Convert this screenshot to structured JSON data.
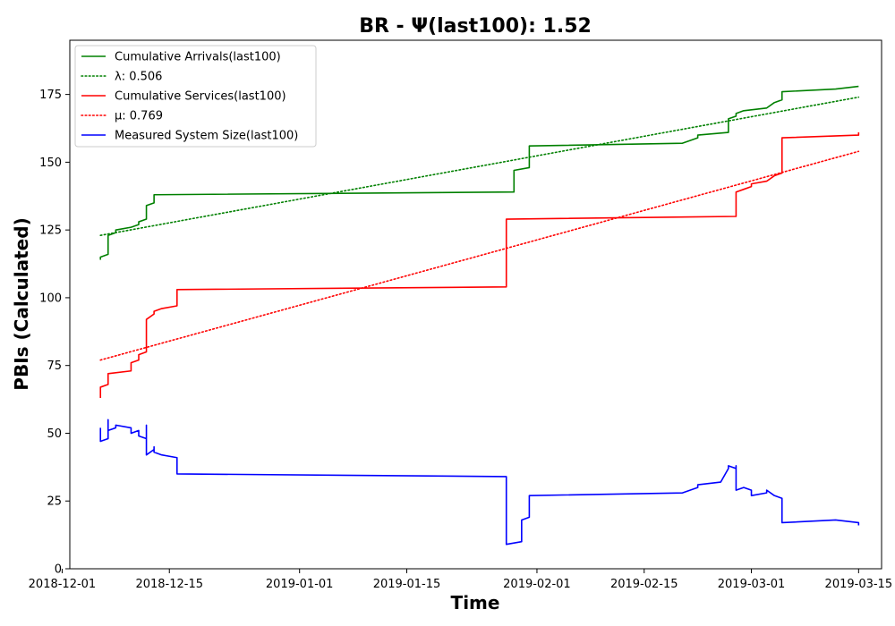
{
  "chart_data": {
    "type": "line",
    "title": "BR -  Ψ(last100): 1.52",
    "xlabel": "Time",
    "ylabel": "PBIs (Calculated)",
    "xlim": [
      "2018-12-02",
      "2019-03-18"
    ],
    "ylim": [
      0,
      195
    ],
    "x_ticks": [
      "2018-12-01",
      "2018-12-15",
      "2019-01-01",
      "2019-01-15",
      "2019-02-01",
      "2019-02-15",
      "2019-03-01",
      "2019-03-15"
    ],
    "y_ticks": [
      0,
      25,
      50,
      75,
      100,
      125,
      150,
      175
    ],
    "grid": false,
    "legend_position": "top-left",
    "series": [
      {
        "name": "Cumulative Arrivals(last100)",
        "color": "#008000",
        "style": "solid",
        "points": [
          [
            "2018-12-06",
            114
          ],
          [
            "2018-12-06",
            115
          ],
          [
            "2018-12-07",
            116
          ],
          [
            "2018-12-07",
            123
          ],
          [
            "2018-12-08",
            124
          ],
          [
            "2018-12-08",
            125
          ],
          [
            "2018-12-10",
            126
          ],
          [
            "2018-12-11",
            127
          ],
          [
            "2018-12-11",
            128
          ],
          [
            "2018-12-12",
            129
          ],
          [
            "2018-12-12",
            134
          ],
          [
            "2018-12-13",
            135
          ],
          [
            "2018-12-13",
            138
          ],
          [
            "2019-01-29",
            139
          ],
          [
            "2019-01-29",
            147
          ],
          [
            "2019-01-31",
            148
          ],
          [
            "2019-01-31",
            156
          ],
          [
            "2019-02-20",
            157
          ],
          [
            "2019-02-22",
            159
          ],
          [
            "2019-02-22",
            160
          ],
          [
            "2019-02-26",
            161
          ],
          [
            "2019-02-26",
            166
          ],
          [
            "2019-02-27",
            167
          ],
          [
            "2019-02-27",
            168
          ],
          [
            "2019-02-28",
            169
          ],
          [
            "2019-03-03",
            170
          ],
          [
            "2019-03-04",
            172
          ],
          [
            "2019-03-05",
            173
          ],
          [
            "2019-03-05",
            176
          ],
          [
            "2019-03-12",
            177
          ],
          [
            "2019-03-15",
            178
          ]
        ]
      },
      {
        "name": "λ: 0.506",
        "color": "#008000",
        "style": "dotted",
        "points": [
          [
            "2018-12-06",
            123
          ],
          [
            "2019-03-15",
            174
          ]
        ]
      },
      {
        "name": "Cumulative Services(last100)",
        "color": "#ff0000",
        "style": "solid",
        "points": [
          [
            "2018-12-06",
            63
          ],
          [
            "2018-12-06",
            66
          ],
          [
            "2018-12-06",
            67
          ],
          [
            "2018-12-07",
            68
          ],
          [
            "2018-12-07",
            69
          ],
          [
            "2018-12-07",
            72
          ],
          [
            "2018-12-10",
            73
          ],
          [
            "2018-12-10",
            76
          ],
          [
            "2018-12-11",
            77
          ],
          [
            "2018-12-11",
            79
          ],
          [
            "2018-12-12",
            80
          ],
          [
            "2018-12-12",
            92
          ],
          [
            "2018-12-13",
            94
          ],
          [
            "2018-12-13",
            95
          ],
          [
            "2018-12-14",
            96
          ],
          [
            "2018-12-16",
            97
          ],
          [
            "2018-12-16",
            103
          ],
          [
            "2019-01-28",
            104
          ],
          [
            "2019-01-28",
            129
          ],
          [
            "2019-02-27",
            130
          ],
          [
            "2019-02-27",
            139
          ],
          [
            "2019-02-28",
            140
          ],
          [
            "2019-03-01",
            141
          ],
          [
            "2019-03-01",
            142
          ],
          [
            "2019-03-03",
            143
          ],
          [
            "2019-03-04",
            145
          ],
          [
            "2019-03-05",
            146
          ],
          [
            "2019-03-05",
            157
          ],
          [
            "2019-03-05",
            159
          ],
          [
            "2019-03-15",
            160
          ],
          [
            "2019-03-15",
            161
          ]
        ]
      },
      {
        "name": "μ: 0.769",
        "color": "#ff0000",
        "style": "dotted",
        "points": [
          [
            "2018-12-06",
            77
          ],
          [
            "2019-03-15",
            154
          ]
        ]
      },
      {
        "name": "Measured System Size(last100)",
        "color": "#0000ff",
        "style": "solid",
        "points": [
          [
            "2018-12-06",
            52
          ],
          [
            "2018-12-06",
            48
          ],
          [
            "2018-12-06",
            47
          ],
          [
            "2018-12-07",
            48
          ],
          [
            "2018-12-07",
            55
          ],
          [
            "2018-12-07",
            51
          ],
          [
            "2018-12-08",
            52
          ],
          [
            "2018-12-08",
            53
          ],
          [
            "2018-12-10",
            52
          ],
          [
            "2018-12-10",
            50
          ],
          [
            "2018-12-11",
            51
          ],
          [
            "2018-12-11",
            49
          ],
          [
            "2018-12-12",
            48
          ],
          [
            "2018-12-12",
            53
          ],
          [
            "2018-12-12",
            42
          ],
          [
            "2018-12-13",
            44
          ],
          [
            "2018-12-13",
            45
          ],
          [
            "2018-12-13",
            43
          ],
          [
            "2018-12-14",
            42
          ],
          [
            "2018-12-16",
            41
          ],
          [
            "2018-12-16",
            35
          ],
          [
            "2019-01-28",
            34
          ],
          [
            "2019-01-28",
            9
          ],
          [
            "2019-01-30",
            10
          ],
          [
            "2019-01-30",
            18
          ],
          [
            "2019-01-31",
            19
          ],
          [
            "2019-01-31",
            27
          ],
          [
            "2019-02-20",
            28
          ],
          [
            "2019-02-22",
            30
          ],
          [
            "2019-02-22",
            31
          ],
          [
            "2019-02-25",
            32
          ],
          [
            "2019-02-26",
            37
          ],
          [
            "2019-02-26",
            38
          ],
          [
            "2019-02-27",
            37
          ],
          [
            "2019-02-27",
            38
          ],
          [
            "2019-02-27",
            29
          ],
          [
            "2019-02-28",
            30
          ],
          [
            "2019-03-01",
            29
          ],
          [
            "2019-03-01",
            27
          ],
          [
            "2019-03-03",
            28
          ],
          [
            "2019-03-03",
            29
          ],
          [
            "2019-03-04",
            27
          ],
          [
            "2019-03-05",
            26
          ],
          [
            "2019-03-05",
            20
          ],
          [
            "2019-03-05",
            17
          ],
          [
            "2019-03-12",
            18
          ],
          [
            "2019-03-15",
            17
          ],
          [
            "2019-03-15",
            16
          ]
        ]
      }
    ]
  }
}
